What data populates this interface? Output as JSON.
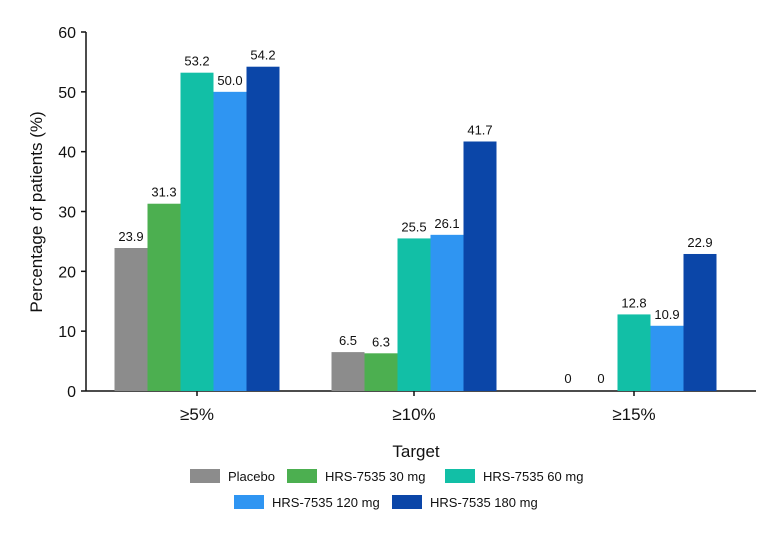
{
  "chart_data": {
    "type": "bar",
    "categories": [
      "≥5%",
      "≥10%",
      "≥15%"
    ],
    "series": [
      {
        "name": "Placebo",
        "values": [
          23.9,
          6.5,
          0
        ],
        "color": "#8c8c8c"
      },
      {
        "name": "HRS-7535 30 mg",
        "values": [
          31.3,
          6.3,
          0
        ],
        "color": "#4caf50"
      },
      {
        "name": "HRS-7535 60 mg",
        "values": [
          53.2,
          25.5,
          12.8
        ],
        "color": "#12bfa6"
      },
      {
        "name": "HRS-7535 120 mg",
        "values": [
          50.0,
          26.1,
          10.9
        ],
        "color": "#2f95f2"
      },
      {
        "name": "HRS-7535 180 mg",
        "values": [
          54.2,
          41.7,
          22.9
        ],
        "color": "#0b46a8"
      }
    ],
    "data_labels": [
      [
        "23.9",
        "6.5",
        "0"
      ],
      [
        "31.3",
        "6.3",
        "0"
      ],
      [
        "53.2",
        "25.5",
        "12.8"
      ],
      [
        "50.0",
        "26.1",
        "10.9"
      ],
      [
        "54.2",
        "41.7",
        "22.9"
      ]
    ],
    "title": "",
    "xlabel": "Target",
    "ylabel": "Percentage of patients (%)",
    "ylim": [
      0,
      60
    ],
    "yticks": [
      0,
      10,
      20,
      30,
      40,
      50,
      60
    ],
    "grid": false,
    "legend_position": "bottom"
  }
}
